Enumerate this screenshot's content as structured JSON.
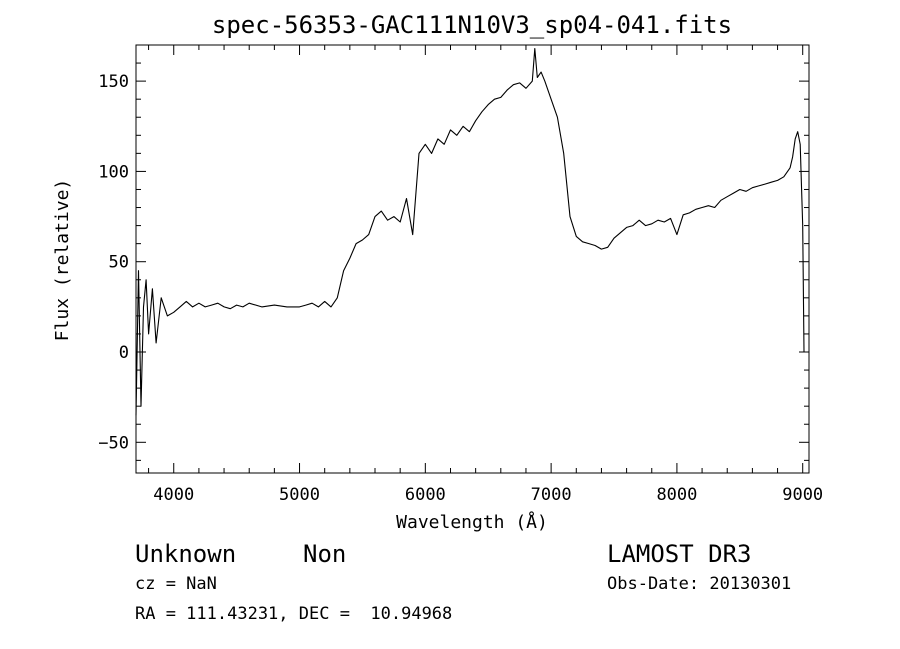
{
  "chart_data": {
    "type": "line",
    "title": "spec-56353-GAC111N10V3_sp04-041.fits",
    "xlabel": "Wavelength (Å)",
    "ylabel": "Flux (relative)",
    "xlim": [
      3700,
      9050
    ],
    "ylim": [
      -67,
      170
    ],
    "xticks": [
      4000,
      5000,
      6000,
      7000,
      8000,
      9000
    ],
    "yticks": [
      -50,
      0,
      50,
      100,
      150
    ],
    "grid": false,
    "legend": "none",
    "line_color": "#000000",
    "series": [
      {
        "x": [
          3700,
          3720,
          3740,
          3760,
          3780,
          3800,
          3830,
          3860,
          3900,
          3950,
          4000,
          4050,
          4100,
          4150,
          4200,
          4250,
          4300,
          4350,
          4400,
          4450,
          4500,
          4550,
          4600,
          4700,
          4800,
          4900,
          5000,
          5050,
          5100,
          5150,
          5200,
          5250,
          5300,
          5350,
          5400,
          5450,
          5500,
          5550,
          5600,
          5650,
          5700,
          5750,
          5800,
          5850,
          5900,
          5950,
          6000,
          6050,
          6100,
          6150,
          6200,
          6250,
          6300,
          6350,
          6400,
          6450,
          6500,
          6550,
          6600,
          6650,
          6700,
          6750,
          6800,
          6850,
          6870,
          6890,
          6920,
          6950,
          7000,
          7050,
          7100,
          7150,
          7200,
          7250,
          7300,
          7350,
          7400,
          7450,
          7500,
          7550,
          7600,
          7650,
          7700,
          7750,
          7800,
          7850,
          7900,
          7950,
          8000,
          8050,
          8100,
          8150,
          8200,
          8250,
          8300,
          8350,
          8400,
          8450,
          8500,
          8550,
          8600,
          8650,
          8700,
          8750,
          8800,
          8850,
          8900,
          8920,
          8940,
          8960,
          8980,
          9000,
          9010
        ],
        "y": [
          -35,
          45,
          -30,
          25,
          40,
          10,
          35,
          5,
          30,
          20,
          22,
          25,
          28,
          25,
          27,
          25,
          26,
          27,
          25,
          24,
          26,
          25,
          27,
          25,
          26,
          25,
          25,
          26,
          27,
          25,
          28,
          25,
          30,
          45,
          52,
          60,
          62,
          65,
          75,
          78,
          73,
          75,
          72,
          85,
          65,
          110,
          115,
          110,
          118,
          115,
          123,
          120,
          125,
          122,
          128,
          133,
          137,
          140,
          141,
          145,
          148,
          149,
          146,
          150,
          168,
          152,
          155,
          150,
          140,
          130,
          110,
          75,
          64,
          61,
          60,
          59,
          57,
          58,
          63,
          66,
          69,
          70,
          73,
          70,
          71,
          73,
          72,
          74,
          65,
          76,
          77,
          79,
          80,
          81,
          80,
          84,
          86,
          88,
          90,
          89,
          91,
          92,
          93,
          94,
          95,
          97,
          102,
          108,
          118,
          122,
          115,
          70,
          0
        ]
      }
    ]
  },
  "info": {
    "object_class": "Unknown",
    "object_subclass": "Non",
    "survey": "LAMOST DR3",
    "cz": "cz = NaN",
    "obs_date": "Obs-Date: 20130301",
    "coords": "RA = 111.43231, DEC =  10.94968"
  }
}
